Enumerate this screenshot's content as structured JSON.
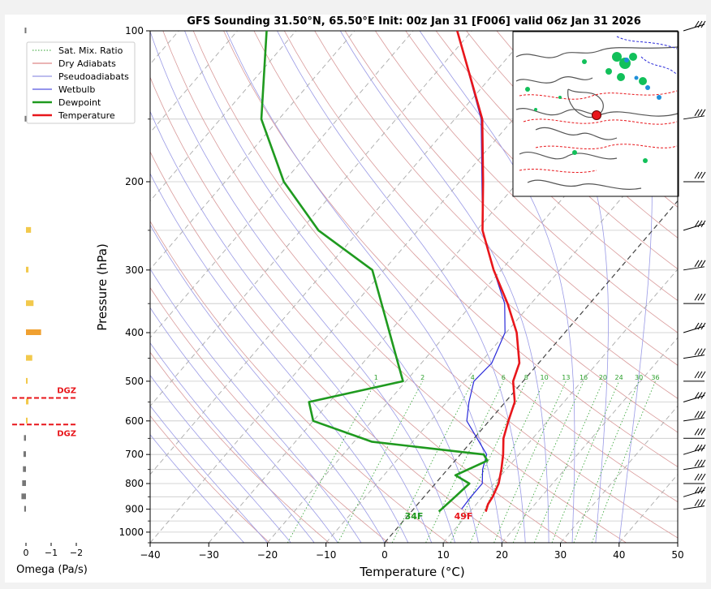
{
  "chart_data": {
    "type": "skew-t",
    "title": "GFS Sounding 31.50°N, 65.50°E Init: 00z Jan 31 [F006] valid 06z Jan 31 2026",
    "xlabel": "Temperature (°C)",
    "ylabel": "Pressure (hPa)",
    "xlim": [
      -40,
      50
    ],
    "ylim": [
      1050,
      100
    ],
    "y_scale": "log",
    "grid": true,
    "x_ticks": [
      "−40",
      "−30",
      "−20",
      "−10",
      "0",
      "10",
      "20",
      "30",
      "40",
      "50"
    ],
    "y_ticks": [
      "100",
      "200",
      "300",
      "400",
      "500",
      "600",
      "700",
      "800",
      "900",
      "1000"
    ],
    "legend": {
      "placement": "top-left",
      "entries": [
        {
          "label": "Sat. Mix. Ratio",
          "color": "#2ca02c",
          "style": "dotted"
        },
        {
          "label": "Dry Adiabats",
          "color": "#d46a6a",
          "style": "solid"
        },
        {
          "label": "Pseudoadiabats",
          "color": "#7b7bdc",
          "style": "solid"
        },
        {
          "label": "Wetbulb",
          "color": "#2929d9",
          "style": "solid"
        },
        {
          "label": "Dewpoint",
          "color": "#1f9a1f",
          "style": "solid"
        },
        {
          "label": "Temperature",
          "color": "#e8161b",
          "style": "solid"
        }
      ]
    },
    "mixing_ratio_labels": [
      "1",
      "2",
      "4",
      "6",
      "8",
      "10",
      "13",
      "16",
      "20",
      "24",
      "30",
      "36"
    ],
    "series": [
      {
        "name": "Temperature",
        "color": "#e8161b",
        "points": [
          {
            "p": 910,
            "t": 12.7
          },
          {
            "p": 880,
            "t": 12.0
          },
          {
            "p": 850,
            "t": 11.7
          },
          {
            "p": 800,
            "t": 10.8
          },
          {
            "p": 750,
            "t": 9.2
          },
          {
            "p": 700,
            "t": 7.3
          },
          {
            "p": 650,
            "t": 5.0
          },
          {
            "p": 600,
            "t": 3.3
          },
          {
            "p": 550,
            "t": 1.6
          },
          {
            "p": 500,
            "t": -1.7
          },
          {
            "p": 460,
            "t": -3.3
          },
          {
            "p": 400,
            "t": -8.2
          },
          {
            "p": 350,
            "t": -14.0
          },
          {
            "p": 300,
            "t": -21.3
          },
          {
            "p": 250,
            "t": -29.0
          },
          {
            "p": 200,
            "t": -36.0
          },
          {
            "p": 150,
            "t": -45.3
          },
          {
            "p": 100,
            "t": -62.5
          }
        ]
      },
      {
        "name": "Dewpoint",
        "color": "#1f9a1f",
        "points": [
          {
            "p": 910,
            "t": 4.7
          },
          {
            "p": 880,
            "t": 5.0
          },
          {
            "p": 850,
            "t": 5.3
          },
          {
            "p": 800,
            "t": 5.8
          },
          {
            "p": 770,
            "t": 2.2
          },
          {
            "p": 720,
            "t": 5.5
          },
          {
            "p": 700,
            "t": 4.0
          },
          {
            "p": 660,
            "t": -17.0
          },
          {
            "p": 600,
            "t": -30.0
          },
          {
            "p": 550,
            "t": -33.5
          },
          {
            "p": 500,
            "t": -20.5
          },
          {
            "p": 300,
            "t": -42.0
          },
          {
            "p": 250,
            "t": -57.0
          },
          {
            "p": 200,
            "t": -70.0
          },
          {
            "p": 150,
            "t": -83.0
          },
          {
            "p": 100,
            "t": -95.0
          }
        ]
      },
      {
        "name": "Wetbulb",
        "color": "#2929d9",
        "points": [
          {
            "p": 900,
            "t": 8.2
          },
          {
            "p": 850,
            "t": 8.0
          },
          {
            "p": 800,
            "t": 8.0
          },
          {
            "p": 750,
            "t": 6.0
          },
          {
            "p": 700,
            "t": 4.5
          },
          {
            "p": 650,
            "t": 0.5
          },
          {
            "p": 600,
            "t": -3.8
          },
          {
            "p": 550,
            "t": -6.2
          },
          {
            "p": 500,
            "t": -8.4
          },
          {
            "p": 460,
            "t": -8.0
          },
          {
            "p": 400,
            "t": -10.2
          },
          {
            "p": 350,
            "t": -14.5
          },
          {
            "p": 300,
            "t": -21.3
          },
          {
            "p": 250,
            "t": -29.0
          },
          {
            "p": 200,
            "t": -36.2
          },
          {
            "p": 150,
            "t": -45.5
          },
          {
            "p": 100,
            "t": -62.5
          }
        ]
      }
    ],
    "surface_labels": {
      "temperature": "49F",
      "dewpoint": "34F"
    },
    "omega": {
      "xlabel": "Omega (Pa/s)",
      "x_ticks": [
        "0",
        "−1",
        "−2"
      ],
      "dgz_label": "DGZ",
      "dgz_pressures": [
        540,
        610
      ],
      "bars": [
        {
          "p": 100,
          "v": 0.05
        },
        {
          "p": 150,
          "v": 0.05
        },
        {
          "p": 250,
          "v": -0.2
        },
        {
          "p": 300,
          "v": -0.1
        },
        {
          "p": 350,
          "v": -0.3
        },
        {
          "p": 400,
          "v": -0.6
        },
        {
          "p": 450,
          "v": -0.25
        },
        {
          "p": 500,
          "v": -0.05
        },
        {
          "p": 550,
          "v": -0.1
        },
        {
          "p": 600,
          "v": -0.03
        },
        {
          "p": 650,
          "v": 0.08
        },
        {
          "p": 700,
          "v": 0.1
        },
        {
          "p": 750,
          "v": 0.12
        },
        {
          "p": 800,
          "v": 0.15
        },
        {
          "p": 850,
          "v": 0.18
        },
        {
          "p": 900,
          "v": 0.07
        }
      ]
    },
    "wind_barb_pressures": [
      100,
      150,
      200,
      250,
      300,
      350,
      400,
      450,
      500,
      550,
      600,
      650,
      700,
      750,
      800,
      850,
      900
    ]
  }
}
